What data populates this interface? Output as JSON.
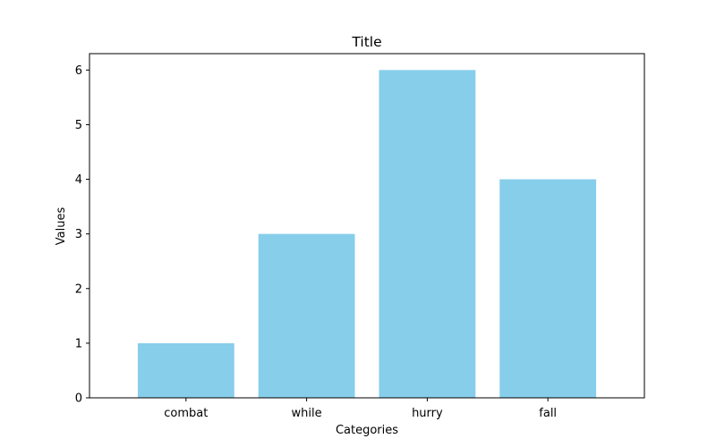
{
  "chart_data": {
    "type": "bar",
    "title": "Title",
    "xlabel": "Categories",
    "ylabel": "Values",
    "categories": [
      "combat",
      "while",
      "hurry",
      "fall"
    ],
    "values": [
      1,
      3,
      6,
      4
    ],
    "ylim": [
      0,
      6.3
    ],
    "yticks": [
      0,
      1,
      2,
      3,
      4,
      5,
      6
    ],
    "grid": false,
    "legend": "none",
    "colors": {
      "bar": "#87ceeb",
      "axis": "#000000",
      "background": "#ffffff"
    }
  }
}
